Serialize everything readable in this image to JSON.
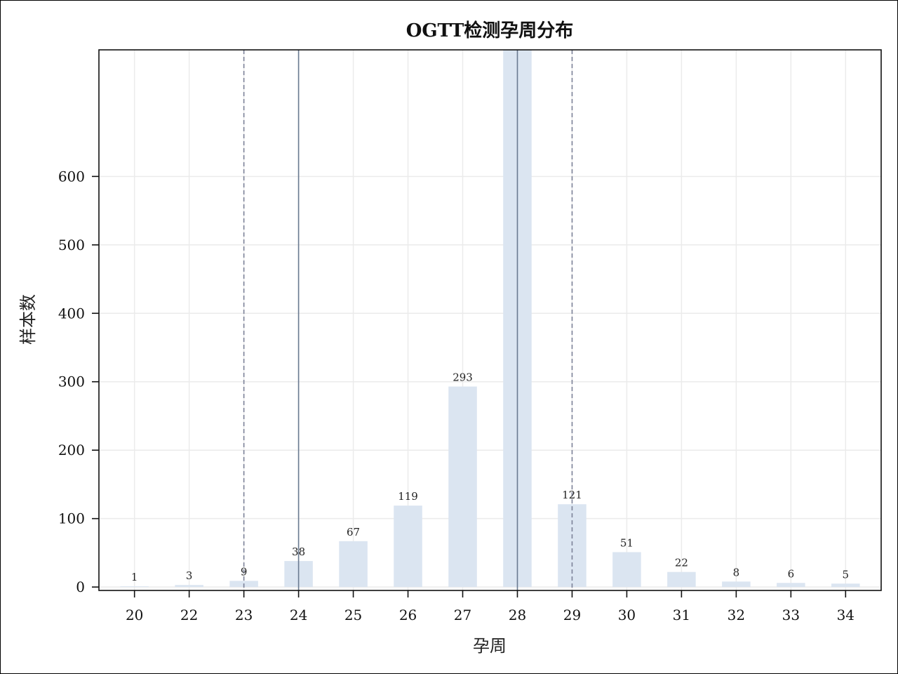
{
  "chart_data": {
    "type": "bar",
    "title": "OGTT检测孕周分布",
    "xlabel": "孕周",
    "ylabel": "样本数",
    "categories": [
      "20",
      "22",
      "23",
      "24",
      "25",
      "26",
      "27",
      "28",
      "29",
      "30",
      "31",
      "32",
      "33",
      "34"
    ],
    "values": [
      1,
      3,
      9,
      38,
      67,
      119,
      293,
      790,
      121,
      51,
      22,
      8,
      6,
      5
    ],
    "data_labels": [
      "1",
      "3",
      "9",
      "38",
      "67",
      "119",
      "293",
      "",
      "121",
      "51",
      "22",
      "8",
      "6",
      "5"
    ],
    "ylim": [
      -5,
      785
    ],
    "yticks": [
      0,
      100,
      200,
      300,
      400,
      500,
      600
    ],
    "grid": true,
    "reference_lines": [
      {
        "category": "23",
        "style": "dashed"
      },
      {
        "category": "24",
        "style": "solid"
      },
      {
        "category": "28",
        "style": "solid"
      },
      {
        "category": "29",
        "style": "dashed"
      }
    ],
    "colors": {
      "bar": "#dbe5f1",
      "grid": "#ebebeb",
      "solid_line": "#6a7a90",
      "dashed_line": "#7c8298",
      "axis": "#111111"
    }
  }
}
